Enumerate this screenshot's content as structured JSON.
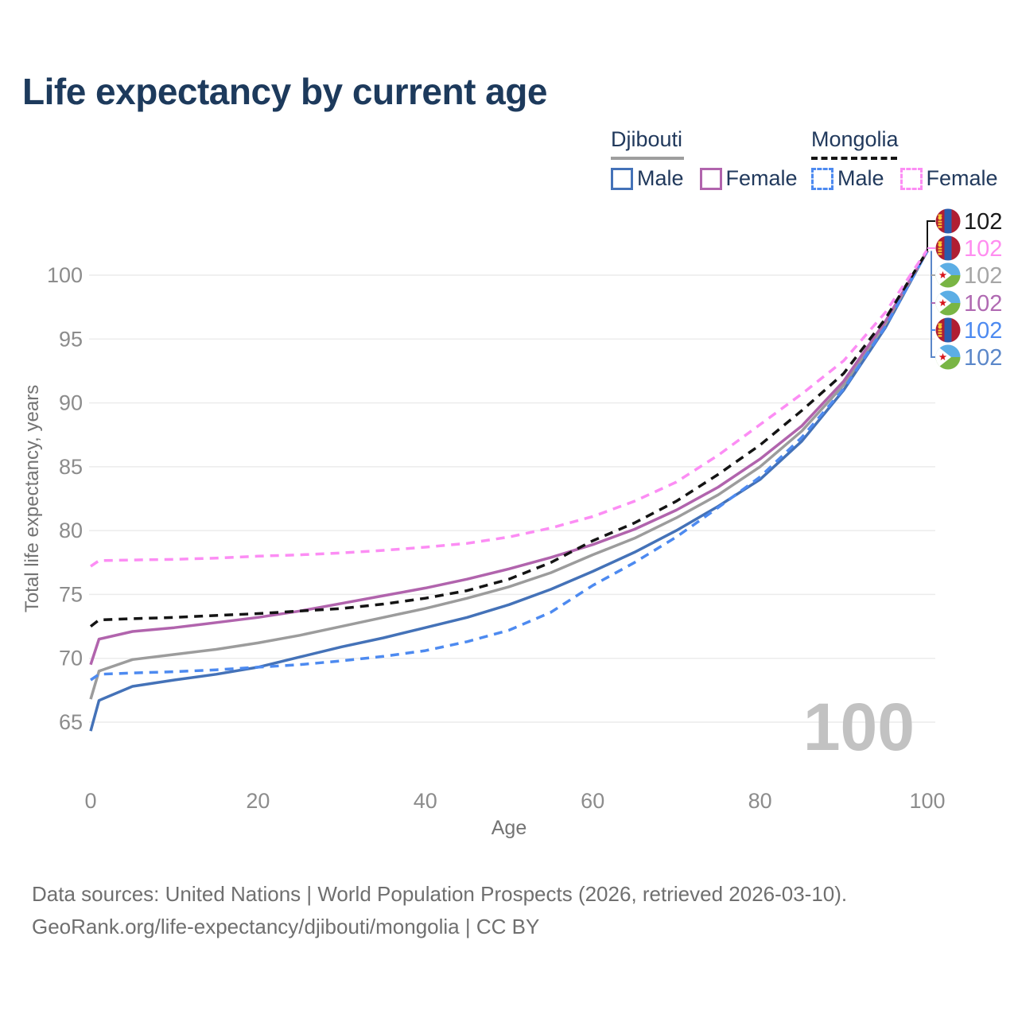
{
  "title": "Life expectancy by current age",
  "legend": {
    "groups": [
      {
        "country": "Djibouti",
        "line_style": "solid",
        "line_color": "#9e9e9e",
        "items": [
          {
            "label": "Male",
            "color": "#4472b8",
            "dashed": false
          },
          {
            "label": "Female",
            "color": "#b164ad",
            "dashed": false
          }
        ]
      },
      {
        "country": "Mongolia",
        "line_style": "dashed",
        "line_color": "#141414",
        "items": [
          {
            "label": "Male",
            "color": "#4d8af0",
            "dashed": true
          },
          {
            "label": "Female",
            "color": "#fc8df4",
            "dashed": true
          }
        ]
      }
    ]
  },
  "age_watermark": "100",
  "footer": {
    "line1": "Data sources: United Nations | World Population Prospects (2026, retrieved 2026-03-10).",
    "line2": "GeoRank.org/life-expectancy/djibouti/mongolia | CC BY"
  },
  "chart_data": {
    "type": "line",
    "title": "Life expectancy by current age",
    "xlabel": "Age",
    "ylabel": "Total life expectancy, years",
    "xlim": [
      0,
      100
    ],
    "ylim": [
      65,
      100
    ],
    "xticks": [
      0,
      20,
      40,
      60,
      80,
      100
    ],
    "yticks": [
      65,
      70,
      75,
      80,
      85,
      90,
      95,
      100
    ],
    "grid": "horizontal",
    "legend_position": "top-right",
    "x": [
      0,
      1,
      5,
      10,
      15,
      20,
      25,
      30,
      35,
      40,
      45,
      50,
      55,
      60,
      65,
      70,
      75,
      80,
      85,
      90,
      95,
      100
    ],
    "series": [
      {
        "name": "Djibouti Male",
        "country": "djibouti",
        "color": "#4472b8",
        "dashed": false,
        "values": [
          64.3,
          66.7,
          67.8,
          68.3,
          68.75,
          69.3,
          70.1,
          70.9,
          71.6,
          72.4,
          73.2,
          74.2,
          75.4,
          76.8,
          78.3,
          80.0,
          81.9,
          84.0,
          87.0,
          91.0,
          95.9,
          101.9
        ],
        "end_label": "102",
        "end_label_color": "#5b87c9",
        "end_label_row": 5
      },
      {
        "name": "Djibouti Total",
        "country": "djibouti",
        "color": "#9c9c9c",
        "dashed": false,
        "values": [
          66.8,
          69.0,
          69.9,
          70.3,
          70.7,
          71.2,
          71.8,
          72.5,
          73.2,
          73.9,
          74.7,
          75.6,
          76.7,
          78.1,
          79.4,
          81.0,
          82.8,
          85.0,
          87.8,
          91.4,
          96.2,
          101.9
        ],
        "end_label": "102",
        "end_label_color": "#a6a6a6",
        "end_label_row": 2
      },
      {
        "name": "Djibouti Female",
        "country": "djibouti",
        "color": "#b164ad",
        "dashed": false,
        "values": [
          69.5,
          71.5,
          72.1,
          72.4,
          72.8,
          73.2,
          73.7,
          74.3,
          74.9,
          75.5,
          76.2,
          77.0,
          77.9,
          78.9,
          80.1,
          81.6,
          83.4,
          85.6,
          88.2,
          91.7,
          96.4,
          101.9
        ],
        "end_label": "102",
        "end_label_color": "#b06ab2",
        "end_label_row": 3
      },
      {
        "name": "Mongolia Male",
        "country": "mongolia",
        "color": "#4d8af0",
        "dashed": true,
        "values": [
          68.3,
          68.75,
          68.85,
          68.95,
          69.1,
          69.3,
          69.5,
          69.8,
          70.15,
          70.6,
          71.3,
          72.2,
          73.6,
          75.7,
          77.5,
          79.5,
          81.8,
          84.2,
          87.3,
          91.1,
          96.0,
          101.9
        ],
        "end_label": "102",
        "end_label_color": "#4d8af0",
        "end_label_row": 4
      },
      {
        "name": "Mongolia Total",
        "country": "mongolia",
        "color": "#141414",
        "dashed": true,
        "values": [
          72.5,
          73.0,
          73.1,
          73.2,
          73.35,
          73.5,
          73.7,
          73.9,
          74.25,
          74.7,
          75.3,
          76.2,
          77.5,
          79.2,
          80.6,
          82.3,
          84.4,
          86.7,
          89.4,
          92.3,
          96.6,
          101.9
        ],
        "end_label": "102",
        "end_label_color": "#1a1a1a",
        "end_label_row": 0
      },
      {
        "name": "Mongolia Female",
        "country": "mongolia",
        "color": "#fc8df4",
        "dashed": true,
        "values": [
          77.2,
          77.65,
          77.7,
          77.75,
          77.85,
          78.0,
          78.1,
          78.25,
          78.45,
          78.7,
          79.0,
          79.5,
          80.2,
          81.1,
          82.3,
          83.8,
          85.9,
          88.3,
          90.7,
          93.3,
          97.1,
          102.0
        ],
        "end_label": "102",
        "end_label_color": "#ff8df0",
        "end_label_row": 1
      }
    ],
    "flag_colors": {
      "mongolia": {
        "red": "#b01e32",
        "blue": "#2a5cad",
        "yellow": "#f9cf33"
      },
      "djibouti": {
        "light_blue": "#5caee5",
        "green": "#79b544",
        "white": "#ffffff",
        "star_red": "#d7141a"
      }
    }
  }
}
